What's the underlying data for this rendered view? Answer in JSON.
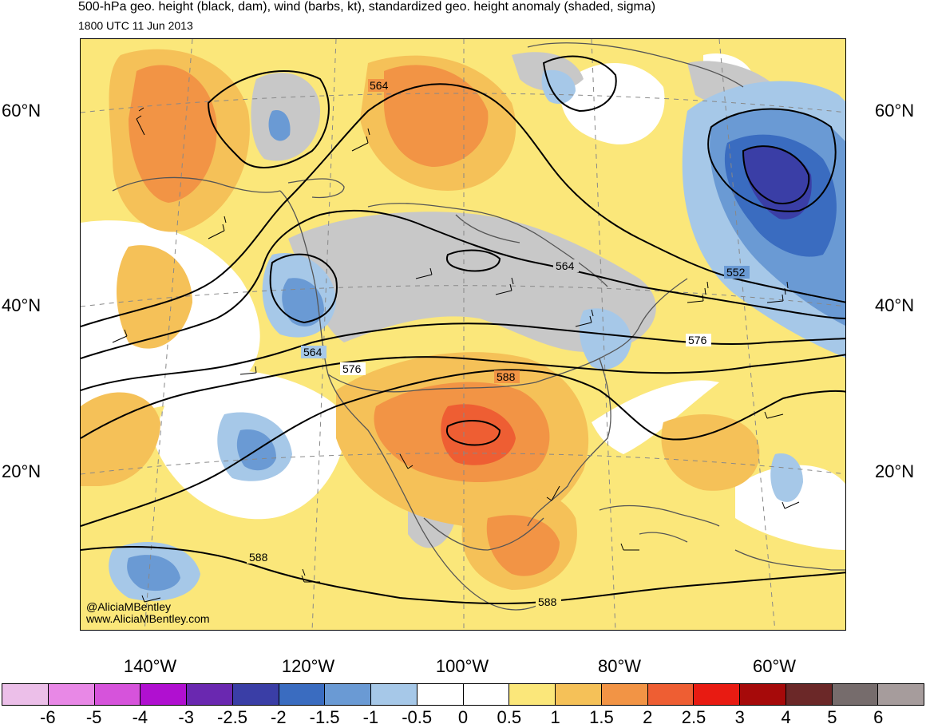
{
  "header": {
    "title": "500-hPa geo. height (black, dam), wind (barbs, kt), standardized geo. height anomaly (shaded, sigma)",
    "valid_time": "1800 UTC 11 Jun 2013"
  },
  "latitude_labels": [
    "60°N",
    "40°N",
    "20°N"
  ],
  "longitude_labels": [
    "140°W",
    "120°W",
    "100°W",
    "80°W",
    "60°W"
  ],
  "contour_labels": [
    "564",
    "564",
    "564",
    "552",
    "576",
    "576",
    "588",
    "588",
    "588"
  ],
  "credits": {
    "handle": "@AliciaMBentley",
    "website": "www.AliciaMBentley.com"
  },
  "colorbar": {
    "labels": [
      "-6",
      "-5",
      "-4",
      "-3",
      "-2.5",
      "-2",
      "-1.5",
      "-1",
      "-0.5",
      "0",
      "0.5",
      "1",
      "1.5",
      "2",
      "2.5",
      "3",
      "4",
      "5",
      "6"
    ],
    "colors": [
      "#ecbfe9",
      "#e888e6",
      "#d653db",
      "#b010d0",
      "#6a28b0",
      "#3a3ea6",
      "#3a6cc0",
      "#6a9ad4",
      "#a6c8e8",
      "#ffffff",
      "#ffffff",
      "#fbe77a",
      "#f5c158",
      "#f29445",
      "#ee5e33",
      "#e81b12",
      "#a60a0a",
      "#6b2828",
      "#766c6c",
      "#a69c9c"
    ]
  },
  "colors": {
    "land_outline": "#555555",
    "gray_neutral": "#c8c8c8",
    "yellow": "#fbe77a",
    "light_orange": "#f5c158",
    "orange": "#f29445",
    "red_orange": "#ee5e33",
    "light_blue": "#a6c8e8",
    "mid_blue": "#6a9ad4",
    "blue": "#3a6cc0",
    "dark_blue": "#3a3ea6"
  }
}
